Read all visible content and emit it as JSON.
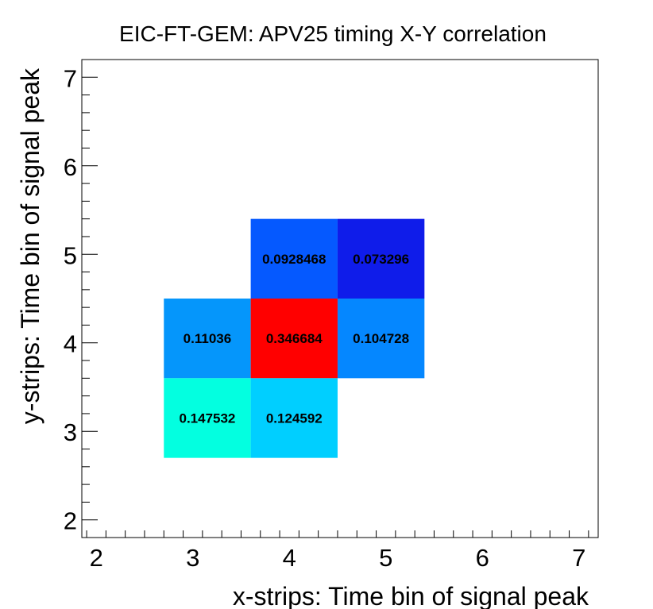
{
  "chart_data": {
    "type": "heatmap",
    "title": "EIC-FT-GEM: APV25 timing X-Y correlation",
    "xlabel": "x-strips: Time bin of signal peak",
    "ylabel": "y-strips: Time bin of signal peak",
    "xlim": [
      1.85,
      7.2
    ],
    "ylim": [
      1.8,
      7.2
    ],
    "xticks": [
      2,
      3,
      4,
      5,
      6,
      7
    ],
    "yticks": [
      2,
      3,
      4,
      5,
      6,
      7
    ],
    "xtick_labels": [
      "2",
      "3",
      "4",
      "5",
      "6",
      "7"
    ],
    "ytick_labels": [
      "2",
      "3",
      "4",
      "5",
      "6",
      "7"
    ],
    "bin_width_x": 0.9,
    "bin_height_y": 0.9,
    "cells": [
      {
        "x": 4.05,
        "y": 4.95,
        "value": 0.0928468,
        "label": "0.0928468",
        "color": "#0559ff"
      },
      {
        "x": 4.95,
        "y": 4.95,
        "value": 0.073296,
        "label": "0.073296",
        "color": "#0f1cea"
      },
      {
        "x": 3.15,
        "y": 4.05,
        "value": 0.11036,
        "label": "0.11036",
        "color": "#0596fb"
      },
      {
        "x": 4.05,
        "y": 4.05,
        "value": 0.346684,
        "label": "0.346684",
        "color": "#ff0000"
      },
      {
        "x": 4.95,
        "y": 4.05,
        "value": 0.104728,
        "label": "0.104728",
        "color": "#0587ff"
      },
      {
        "x": 3.15,
        "y": 3.15,
        "value": 0.147532,
        "label": "0.147532",
        "color": "#03ffe0"
      },
      {
        "x": 4.05,
        "y": 3.15,
        "value": 0.124592,
        "label": "0.124592",
        "color": "#00cfff"
      }
    ]
  }
}
